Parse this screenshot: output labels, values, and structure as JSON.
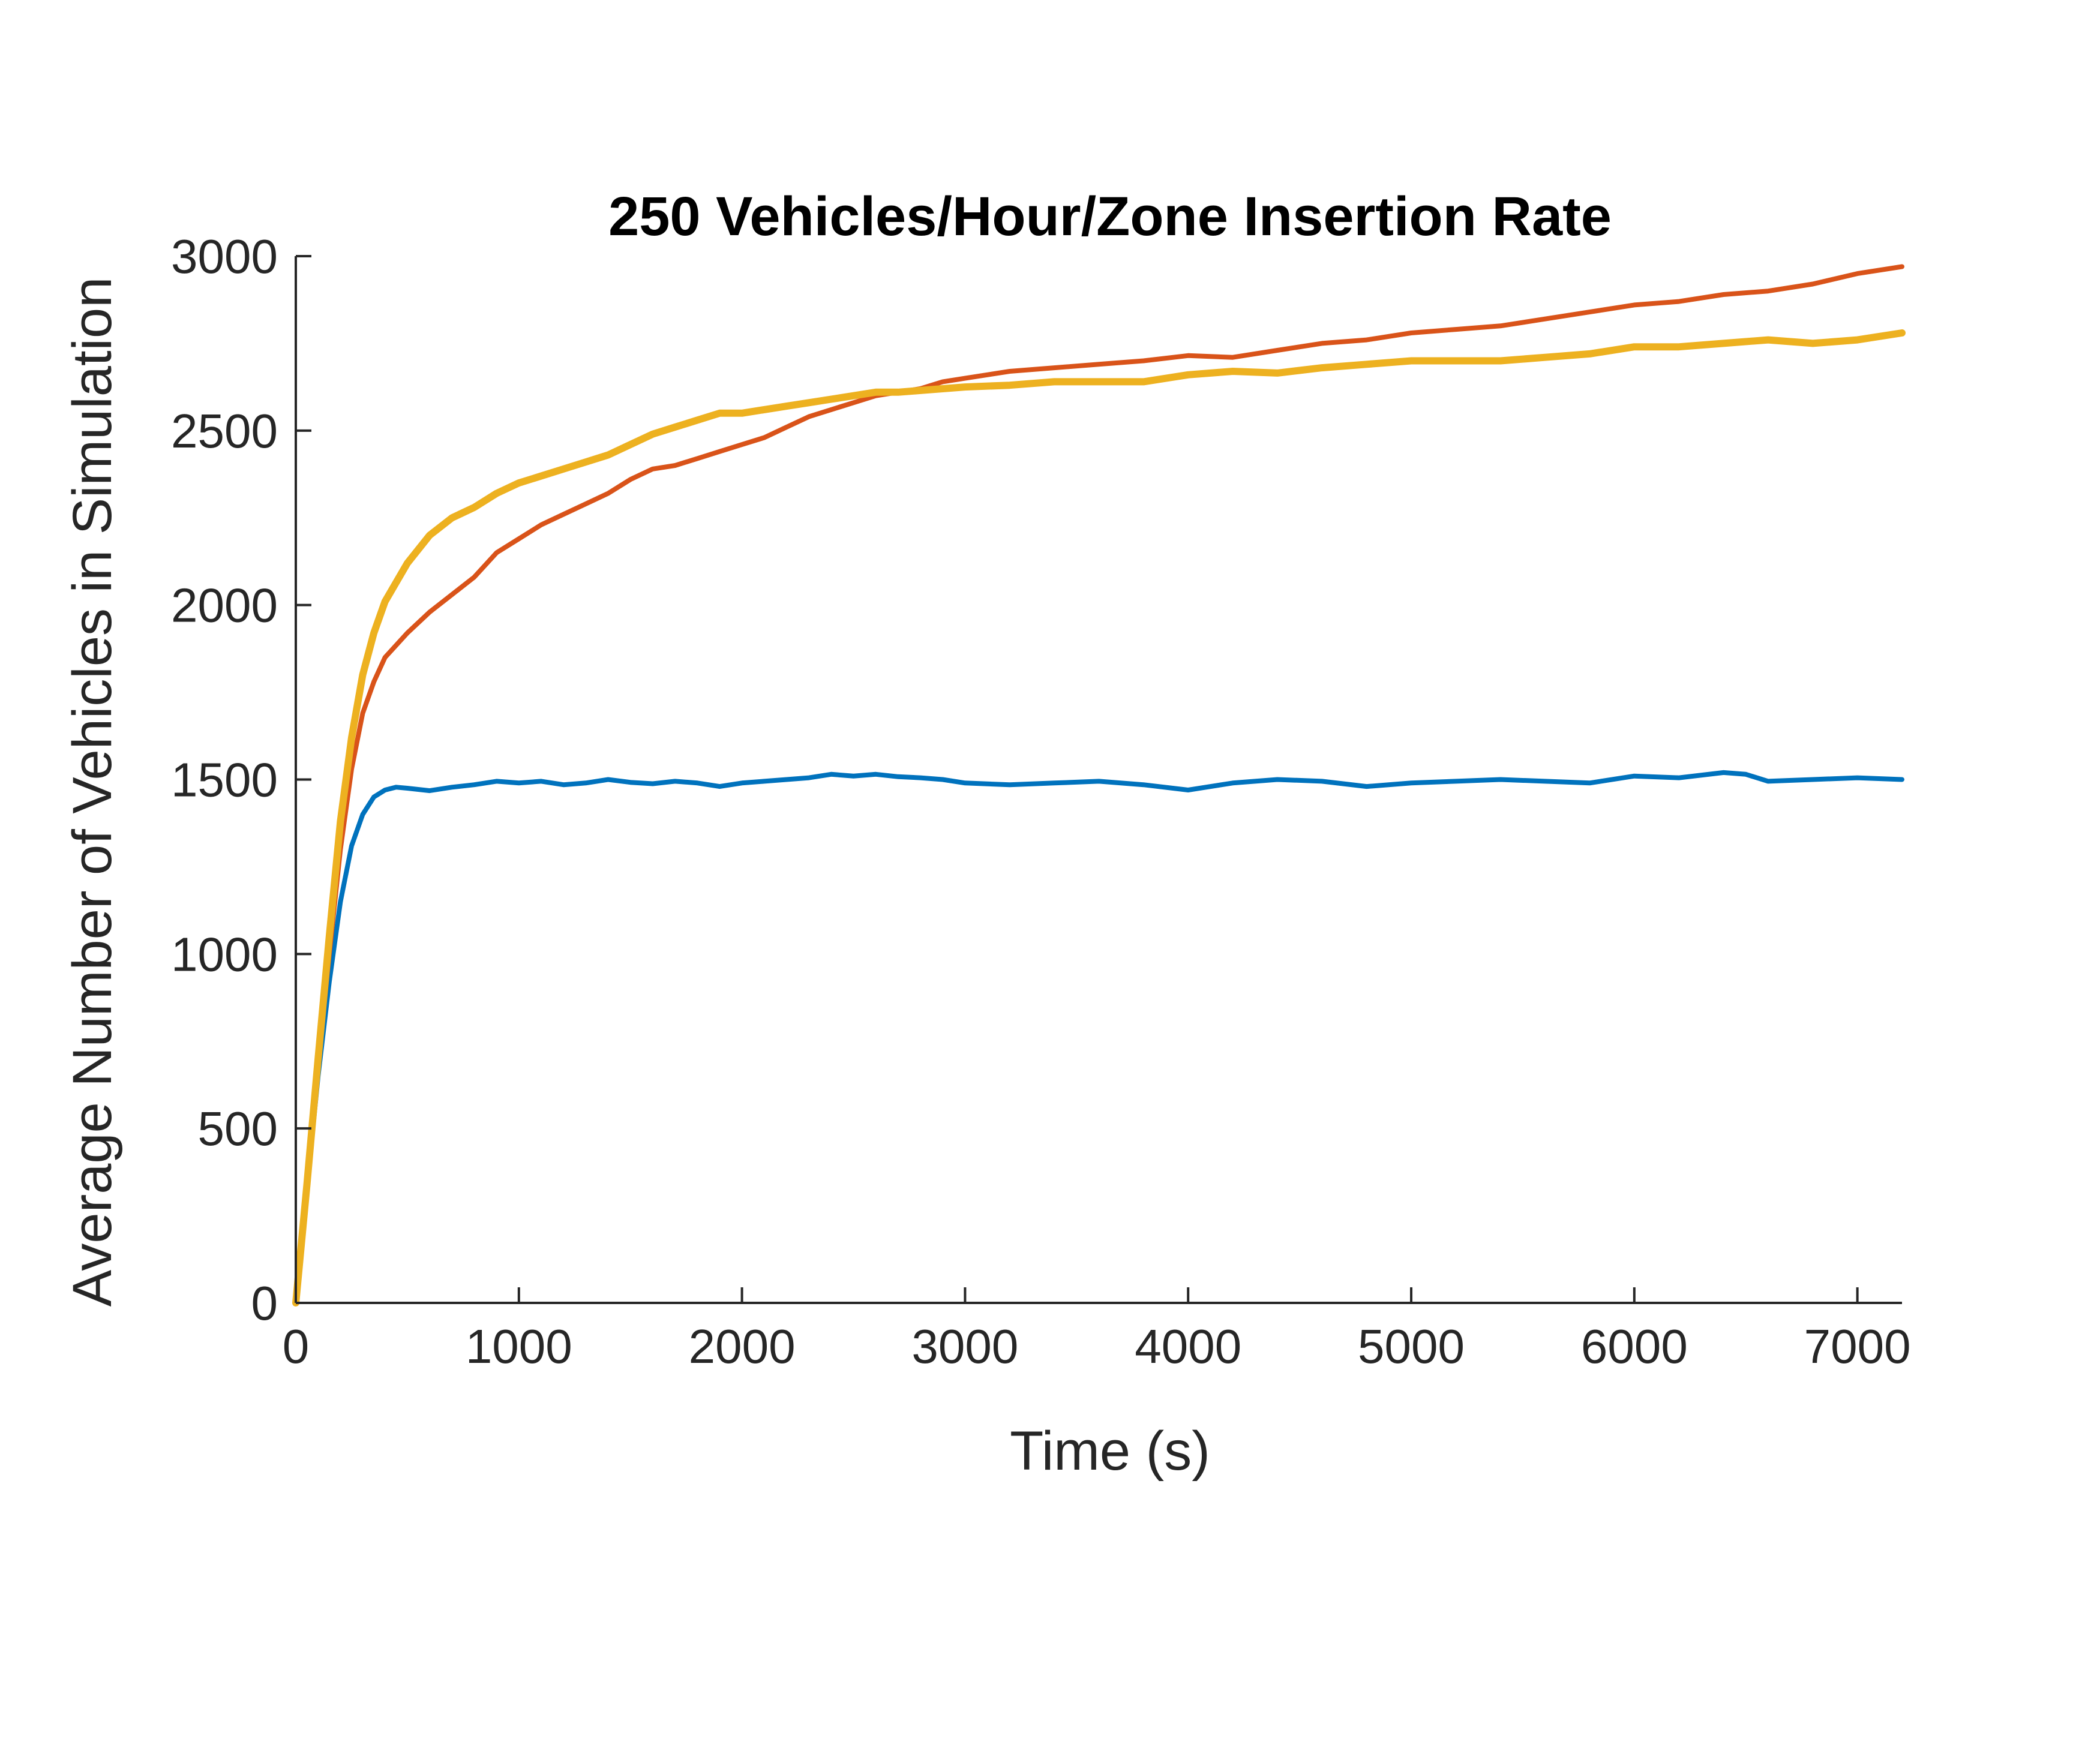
{
  "chart_data": {
    "type": "line",
    "title": "250 Vehicles/Hour/Zone Insertion Rate",
    "xlabel": "Time (s)",
    "ylabel": "Average Number of Vehicles in Simulation",
    "xlim": [
      0,
      7200
    ],
    "ylim": [
      0,
      3000
    ],
    "xticks": [
      0,
      1000,
      2000,
      3000,
      4000,
      5000,
      6000,
      7000
    ],
    "yticks": [
      0,
      500,
      1000,
      1500,
      2000,
      2500,
      3000
    ],
    "grid": false,
    "legend": null,
    "series": [
      {
        "name": "blue",
        "color": "#0072BD",
        "x": [
          0,
          50,
          100,
          150,
          200,
          250,
          300,
          350,
          400,
          450,
          500,
          600,
          700,
          800,
          900,
          1000,
          1100,
          1200,
          1300,
          1400,
          1500,
          1600,
          1700,
          1800,
          1900,
          2000,
          2100,
          2200,
          2300,
          2400,
          2500,
          2600,
          2700,
          2800,
          2900,
          3000,
          3200,
          3400,
          3600,
          3800,
          4000,
          4200,
          4400,
          4600,
          4800,
          5000,
          5200,
          5400,
          5600,
          5800,
          6000,
          6200,
          6400,
          6500,
          6600,
          6800,
          7000,
          7200
        ],
        "y": [
          0,
          330,
          650,
          920,
          1150,
          1310,
          1400,
          1450,
          1470,
          1478,
          1475,
          1468,
          1478,
          1485,
          1495,
          1490,
          1495,
          1485,
          1490,
          1500,
          1492,
          1488,
          1495,
          1490,
          1480,
          1490,
          1495,
          1500,
          1505,
          1515,
          1510,
          1515,
          1508,
          1505,
          1500,
          1490,
          1485,
          1490,
          1495,
          1485,
          1470,
          1490,
          1500,
          1495,
          1480,
          1490,
          1495,
          1500,
          1495,
          1490,
          1510,
          1505,
          1520,
          1515,
          1495,
          1500,
          1505,
          1500
        ]
      },
      {
        "name": "red",
        "color": "#D95319",
        "x": [
          0,
          50,
          100,
          150,
          200,
          250,
          300,
          350,
          400,
          500,
          600,
          700,
          800,
          900,
          1000,
          1100,
          1200,
          1300,
          1400,
          1500,
          1600,
          1700,
          1800,
          1900,
          2000,
          2100,
          2200,
          2300,
          2400,
          2500,
          2600,
          2700,
          2800,
          2900,
          3000,
          3200,
          3400,
          3600,
          3800,
          4000,
          4200,
          4400,
          4600,
          4800,
          5000,
          5200,
          5400,
          5600,
          5800,
          6000,
          6200,
          6400,
          6600,
          6800,
          7000,
          7200
        ],
        "y": [
          0,
          330,
          680,
          1000,
          1300,
          1530,
          1690,
          1780,
          1850,
          1920,
          1980,
          2030,
          2080,
          2150,
          2190,
          2230,
          2260,
          2290,
          2320,
          2360,
          2390,
          2400,
          2420,
          2440,
          2460,
          2480,
          2510,
          2540,
          2560,
          2580,
          2600,
          2610,
          2620,
          2640,
          2650,
          2670,
          2680,
          2690,
          2700,
          2715,
          2710,
          2730,
          2750,
          2760,
          2780,
          2790,
          2800,
          2820,
          2840,
          2860,
          2870,
          2890,
          2900,
          2920,
          2950,
          2970
        ]
      },
      {
        "name": "yellow",
        "color": "#EDB120",
        "x": [
          0,
          50,
          100,
          150,
          200,
          250,
          300,
          350,
          400,
          500,
          600,
          700,
          800,
          900,
          1000,
          1100,
          1200,
          1300,
          1400,
          1500,
          1600,
          1700,
          1800,
          1900,
          2000,
          2100,
          2200,
          2300,
          2400,
          2500,
          2600,
          2700,
          2800,
          2900,
          3000,
          3200,
          3400,
          3600,
          3800,
          4000,
          4200,
          4400,
          4600,
          4800,
          5000,
          5200,
          5400,
          5600,
          5800,
          6000,
          6200,
          6400,
          6600,
          6800,
          7000,
          7200
        ],
        "y": [
          0,
          340,
          700,
          1050,
          1380,
          1620,
          1800,
          1920,
          2010,
          2120,
          2200,
          2250,
          2280,
          2320,
          2350,
          2370,
          2390,
          2410,
          2430,
          2460,
          2490,
          2510,
          2530,
          2550,
          2550,
          2560,
          2570,
          2580,
          2590,
          2600,
          2610,
          2610,
          2615,
          2620,
          2625,
          2630,
          2640,
          2640,
          2640,
          2660,
          2670,
          2665,
          2680,
          2690,
          2700,
          2700,
          2700,
          2710,
          2720,
          2740,
          2740,
          2750,
          2760,
          2750,
          2760,
          2780
        ]
      }
    ]
  }
}
